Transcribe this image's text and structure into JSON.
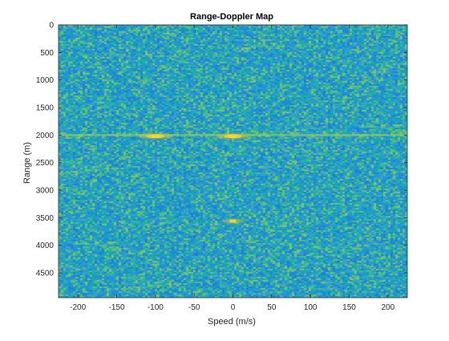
{
  "chart_data": {
    "type": "heatmap",
    "title": "Range-Doppler Map",
    "xlabel": "Speed (m/s)",
    "ylabel": "Range (m)",
    "xlim": [
      -225,
      225
    ],
    "ylim": [
      0,
      4950
    ],
    "y_reversed": true,
    "x_ticks": [
      -200,
      -150,
      -100,
      -50,
      0,
      50,
      100,
      150,
      200
    ],
    "y_ticks": [
      0,
      500,
      1000,
      1500,
      2000,
      2500,
      3000,
      3500,
      4000,
      4500
    ],
    "colormap": "parula",
    "colors": {
      "background": "#1fa0b8",
      "noise_low": "#2c8fd6",
      "noise_high": "#5cc482",
      "peak": "#f7d62b"
    },
    "grid": false,
    "legend": "none",
    "targets": [
      {
        "speed": -100,
        "range": 2020,
        "level": "high"
      },
      {
        "speed": 0,
        "range": 2020,
        "level": "high"
      },
      {
        "speed": 0,
        "range": 3560,
        "level": "medium"
      }
    ],
    "ridges": [
      {
        "range": 2000,
        "level": "low"
      }
    ]
  }
}
